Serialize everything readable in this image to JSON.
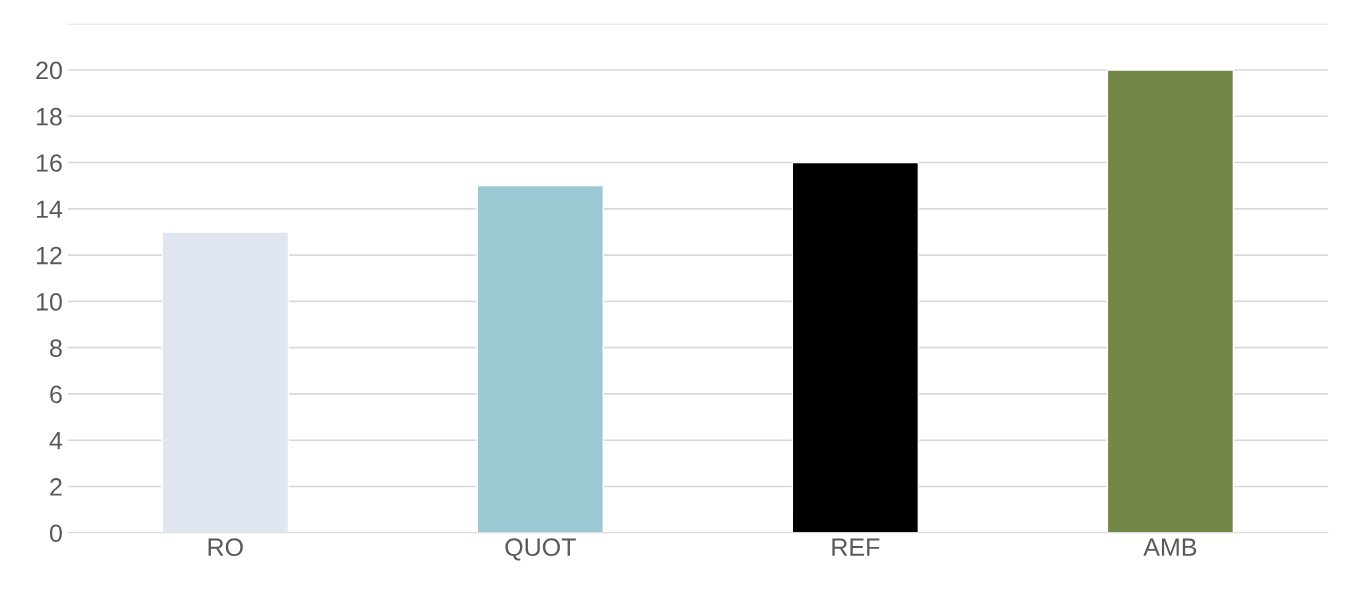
{
  "chart_data": {
    "type": "bar",
    "categories": [
      "RO",
      "QUOT",
      "REF",
      "AMB"
    ],
    "values": [
      13,
      15,
      16,
      20
    ],
    "colors": [
      "#dce6f2",
      "#93cddd",
      "#000000",
      "#77933c"
    ],
    "ylim": [
      0,
      22
    ],
    "yticks": [
      0,
      2,
      4,
      6,
      8,
      10,
      12,
      14,
      16,
      18,
      20,
      {
        "value": 22,
        "label": null
      }
    ],
    "grid": "y"
  }
}
